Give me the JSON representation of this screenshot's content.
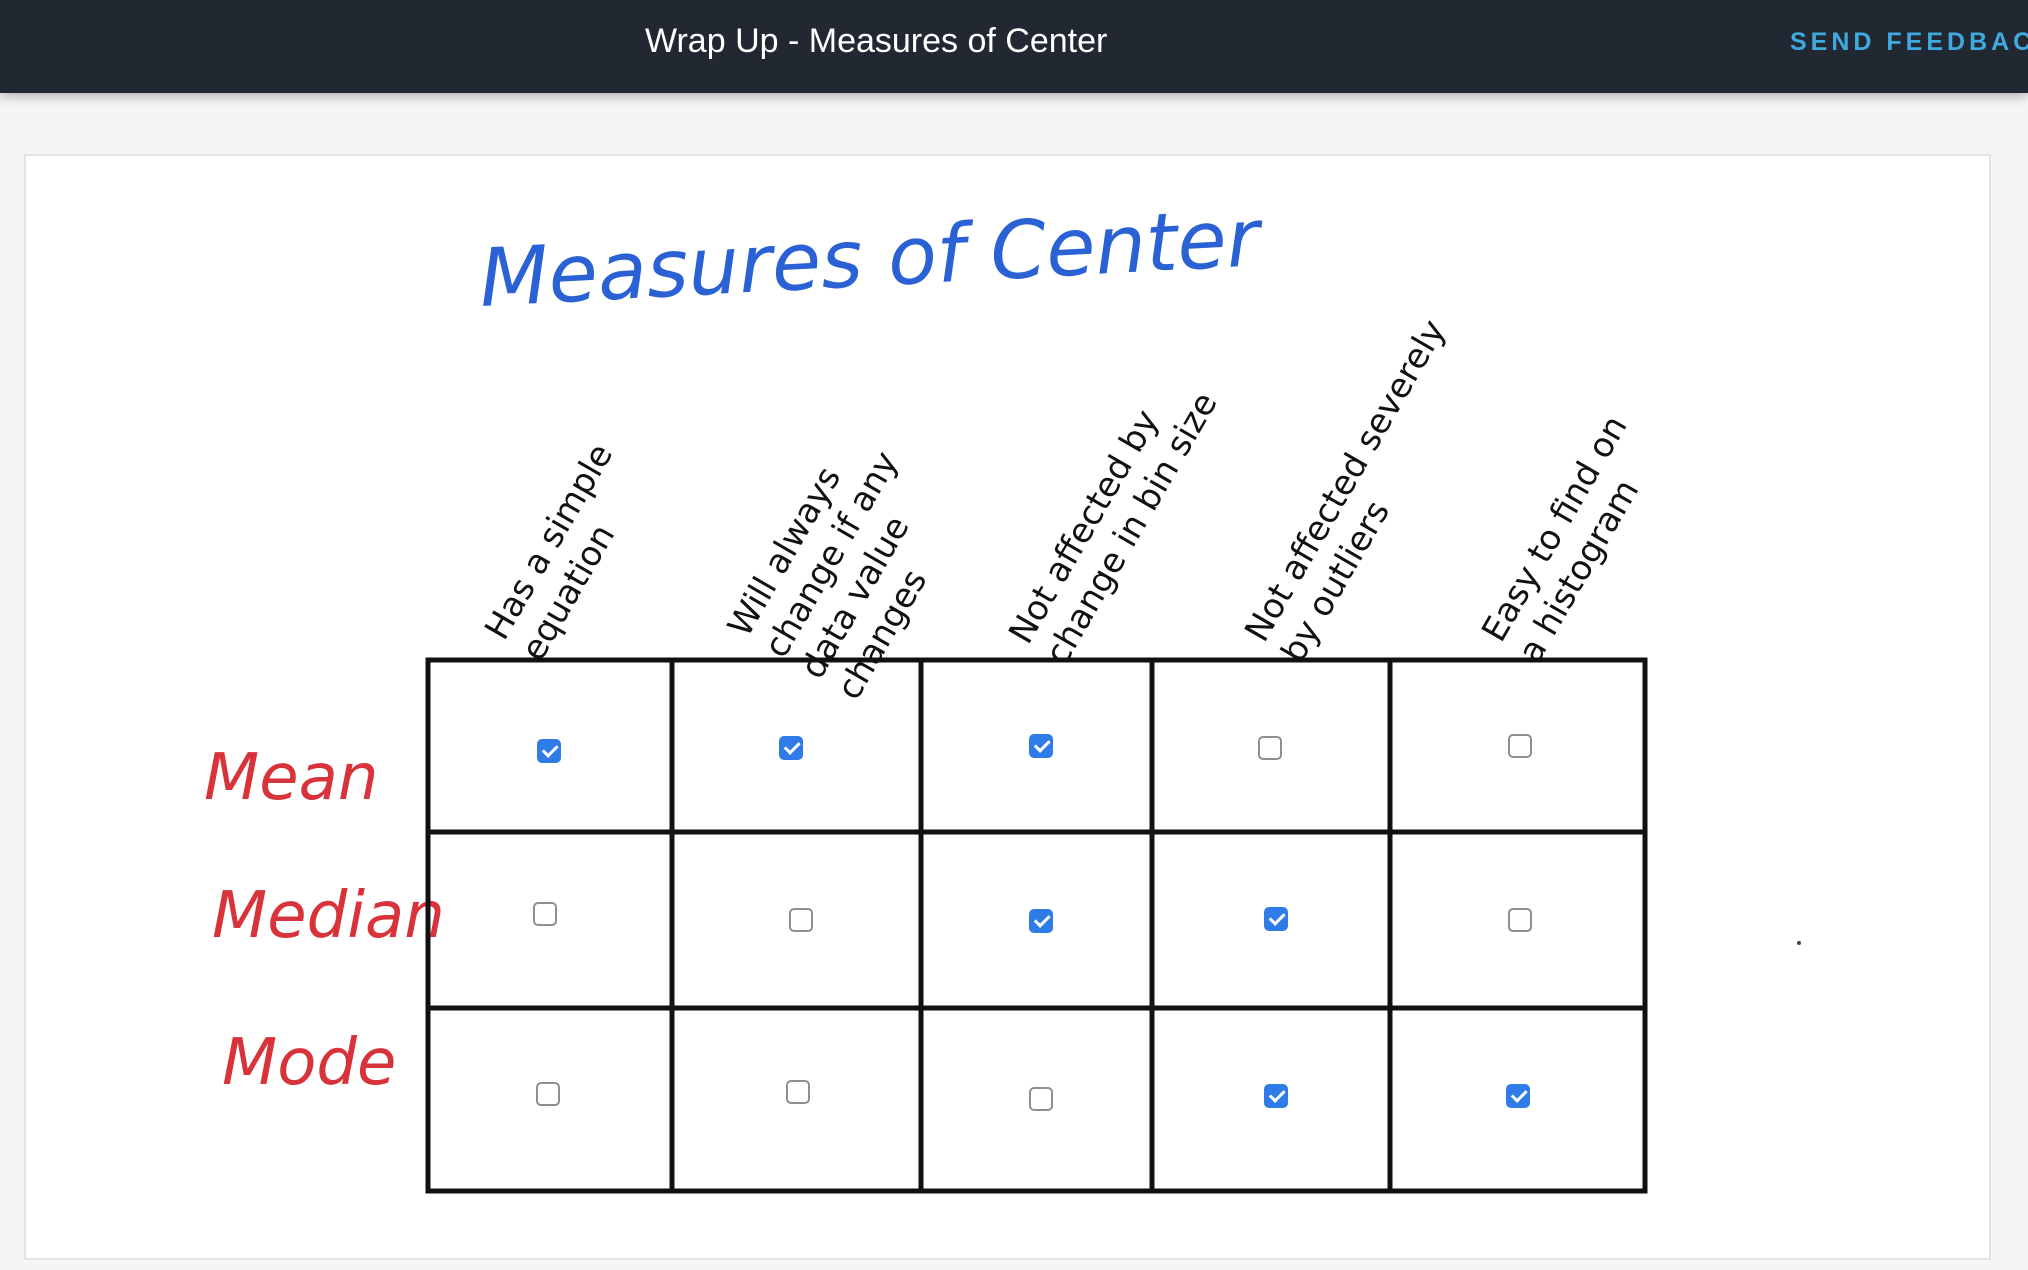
{
  "header": {
    "title": "Wrap Up - Measures of Center",
    "feedback_label": "SEND FEEDBACK"
  },
  "figure": {
    "title": "Measures of Center",
    "title_color": "#2a62d6",
    "row_label_color": "#d8333a",
    "checkbox_color": "#2f7be8",
    "columns": [
      {
        "line1": "Has a simple",
        "line2": "equation"
      },
      {
        "line1": "Will always",
        "line2": "change if any",
        "line3": "data value",
        "line4": "changes"
      },
      {
        "line1": "Not affected by",
        "line2": "change in bin size"
      },
      {
        "line1": "Not affected severely",
        "line2": "by outliers"
      },
      {
        "line1": "Easy to find on",
        "line2": "a histogram"
      }
    ],
    "rows": [
      {
        "label": "Mean",
        "checks": [
          true,
          true,
          true,
          false,
          false
        ]
      },
      {
        "label": "Median",
        "checks": [
          false,
          false,
          true,
          true,
          false
        ]
      },
      {
        "label": "Mode",
        "checks": [
          false,
          false,
          false,
          true,
          true
        ]
      }
    ]
  }
}
